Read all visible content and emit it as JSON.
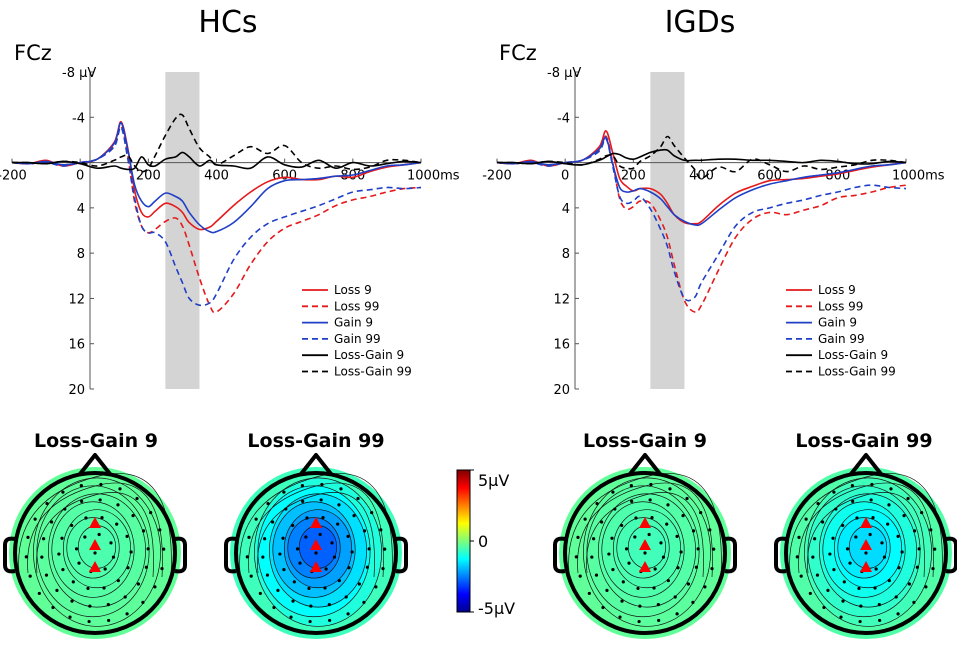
{
  "chart_data": [
    {
      "type": "line",
      "title": "HCs",
      "ylabel": "FCz",
      "y_unit_label": "µV",
      "x_unit_label": "ms",
      "xlim": [
        -200,
        1000
      ],
      "ylim": [
        -8,
        20
      ],
      "y_inverted": true,
      "x_tick_labels": [
        "-200",
        "0",
        "200",
        "400",
        "600",
        "800",
        "1000ms"
      ],
      "y_tick_labels": [
        "-8 µV",
        "-4",
        "0",
        "4",
        "8",
        "12",
        "16",
        "20"
      ],
      "highlight_window": [
        250,
        350
      ],
      "x": [
        -200,
        -150,
        -100,
        -50,
        0,
        50,
        100,
        120,
        140,
        160,
        180,
        200,
        220,
        250,
        280,
        300,
        320,
        350,
        380,
        400,
        450,
        500,
        550,
        600,
        650,
        700,
        750,
        800,
        850,
        900,
        950,
        1000
      ],
      "series": [
        {
          "name": "Loss 9",
          "color": "#e41a1c",
          "dash": false,
          "values": [
            0,
            0.1,
            -0.2,
            0.3,
            0,
            -0.3,
            -1.8,
            -3.6,
            -1.2,
            2.5,
            4.4,
            4.8,
            4.3,
            3.6,
            3.9,
            4.4,
            5.3,
            5.9,
            5.7,
            5.2,
            3.8,
            2.6,
            1.7,
            1.3,
            1.5,
            1.5,
            1.2,
            1.3,
            0.8,
            0.4,
            0.2,
            0
          ]
        },
        {
          "name": "Loss 99",
          "color": "#e41a1c",
          "dash": true,
          "values": [
            0,
            0.1,
            0,
            0.2,
            0,
            -0.3,
            -1.5,
            -3.2,
            -0.5,
            3.5,
            5.6,
            6.2,
            5.9,
            5.2,
            4.9,
            5.6,
            7.3,
            10.2,
            12.6,
            13.2,
            11.6,
            9.0,
            7.0,
            5.8,
            5.2,
            4.6,
            3.8,
            3.3,
            3.0,
            2.6,
            2.3,
            2.2
          ]
        },
        {
          "name": "Gain 9",
          "color": "#1f3fc6",
          "dash": false,
          "values": [
            0,
            0.1,
            -0.1,
            0.2,
            0,
            -0.3,
            -1.7,
            -3.5,
            -1.1,
            2.0,
            3.4,
            3.9,
            3.4,
            2.7,
            3.0,
            3.4,
            4.4,
            5.5,
            6.1,
            6.1,
            5.3,
            3.9,
            2.3,
            1.6,
            1.5,
            1.4,
            1.2,
            1.1,
            0.7,
            0.3,
            0.2,
            0
          ]
        },
        {
          "name": "Gain 99",
          "color": "#1f3fc6",
          "dash": true,
          "values": [
            0,
            0.1,
            0,
            0.3,
            0,
            -0.3,
            -1.4,
            -3.1,
            -0.3,
            3.2,
            5.6,
            6.2,
            6.2,
            7.0,
            9.2,
            10.6,
            12.0,
            12.6,
            12.4,
            11.6,
            8.6,
            6.6,
            5.4,
            4.8,
            4.3,
            3.8,
            3.2,
            2.6,
            2.4,
            2.2,
            2.3,
            2.2
          ]
        },
        {
          "name": "Loss-Gain 9",
          "color": "#000000",
          "dash": false,
          "values": [
            0,
            0,
            0.1,
            -0.1,
            0.1,
            0.5,
            0.3,
            0.5,
            0.6,
            0.5,
            -0.5,
            0.2,
            0.3,
            -0.3,
            -0.5,
            -0.9,
            -0.5,
            0.3,
            -0.2,
            0.2,
            0.3,
            0.5,
            -0.5,
            0.2,
            0.4,
            -0.2,
            0.5,
            0,
            0.3,
            0.1,
            -0.1,
            0
          ]
        },
        {
          "name": "Loss-Gain 99",
          "color": "#000000",
          "dash": true,
          "values": [
            0,
            0,
            0.1,
            -0.1,
            0,
            0.3,
            -0.2,
            -0.5,
            -0.6,
            0.3,
            0.8,
            0.5,
            -0.6,
            -2.4,
            -3.9,
            -4.2,
            -3.0,
            -1.3,
            -0.5,
            0.2,
            -0.6,
            -1.4,
            -0.8,
            -1.5,
            0,
            0.5,
            0.3,
            0.6,
            0.4,
            -0.2,
            -0.2,
            0
          ]
        }
      ]
    },
    {
      "type": "line",
      "title": "IGDs",
      "ylabel": "FCz",
      "y_unit_label": "µV",
      "x_unit_label": "ms",
      "xlim": [
        -200,
        1000
      ],
      "ylim": [
        -8,
        20
      ],
      "y_inverted": true,
      "x_tick_labels": [
        "-200",
        "0",
        "200",
        "400",
        "600",
        "800",
        "1000ms"
      ],
      "y_tick_labels": [
        "-8 µV",
        "-4",
        "0",
        "4",
        "8",
        "12",
        "16",
        "20"
      ],
      "highlight_window": [
        250,
        350
      ],
      "x": [
        -200,
        -150,
        -100,
        -50,
        0,
        50,
        100,
        120,
        140,
        160,
        180,
        200,
        220,
        250,
        280,
        300,
        320,
        350,
        380,
        400,
        450,
        500,
        550,
        600,
        650,
        700,
        750,
        800,
        850,
        900,
        950,
        1000
      ],
      "series": [
        {
          "name": "Loss 9",
          "color": "#e41a1c",
          "dash": false,
          "values": [
            0,
            0.1,
            -0.2,
            0.3,
            0,
            -0.2,
            -1.4,
            -2.8,
            -0.8,
            1.4,
            2.1,
            2.5,
            2.3,
            2.3,
            2.8,
            3.6,
            4.6,
            5.3,
            5.4,
            5.2,
            3.8,
            2.7,
            2.1,
            1.6,
            1.5,
            1.4,
            1.2,
            1.0,
            0.7,
            0.4,
            0.2,
            0
          ]
        },
        {
          "name": "Loss 99",
          "color": "#e41a1c",
          "dash": true,
          "values": [
            0,
            0.1,
            0,
            0.2,
            0,
            -0.2,
            -1.1,
            -2.3,
            0.1,
            3.2,
            4.1,
            3.9,
            3.4,
            3.6,
            5.1,
            6.6,
            9.0,
            12.2,
            13.2,
            12.6,
            9.5,
            6.6,
            5.0,
            4.4,
            4.6,
            4.2,
            3.8,
            3.1,
            2.9,
            2.6,
            2.2,
            2.0
          ]
        },
        {
          "name": "Gain 9",
          "color": "#1f3fc6",
          "dash": false,
          "values": [
            0,
            0.1,
            -0.1,
            0.2,
            0,
            -0.2,
            -1.2,
            -2.2,
            0.2,
            2.2,
            2.6,
            2.5,
            2.3,
            2.6,
            3.2,
            3.9,
            4.6,
            5.2,
            5.5,
            5.4,
            4.2,
            3.1,
            2.4,
            1.9,
            1.6,
            1.3,
            1.1,
            0.9,
            0.6,
            0.3,
            0.2,
            0
          ]
        },
        {
          "name": "Gain 99",
          "color": "#1f3fc6",
          "dash": true,
          "values": [
            0,
            0.1,
            0,
            0.3,
            0,
            -0.2,
            -1.0,
            -2.1,
            0.4,
            3.0,
            3.6,
            3.4,
            3.0,
            4.1,
            5.9,
            7.4,
            9.6,
            12.0,
            11.9,
            10.6,
            8.1,
            5.6,
            4.4,
            4.0,
            3.6,
            3.3,
            2.9,
            2.6,
            2.2,
            2.0,
            2.2,
            2.3
          ]
        },
        {
          "name": "Loss-Gain 9",
          "color": "#000000",
          "dash": false,
          "values": [
            0,
            0,
            0.1,
            -0.1,
            0.1,
            0.2,
            -0.2,
            -0.5,
            -0.8,
            -0.7,
            -0.4,
            -0.3,
            -0.5,
            -0.9,
            -1.1,
            -1.1,
            -0.6,
            -0.2,
            -0.2,
            -0.2,
            -0.3,
            -0.3,
            -0.2,
            -0.2,
            -0.1,
            0,
            -0.2,
            -0.1,
            0.1,
            0.1,
            -0.1,
            0
          ]
        },
        {
          "name": "Loss-Gain 99",
          "color": "#000000",
          "dash": true,
          "values": [
            0,
            0,
            0.1,
            -0.1,
            0,
            0.2,
            -0.3,
            -0.6,
            -0.6,
            0.3,
            0.5,
            0.5,
            -0.1,
            -0.6,
            -1.4,
            -2.3,
            -1.5,
            -0.4,
            0.6,
            1.4,
            0.4,
            0.8,
            -0.3,
            0.2,
            0.8,
            0.3,
            0.6,
            0.4,
            0.2,
            -0.2,
            -0.2,
            0
          ]
        }
      ]
    },
    {
      "type": "heatmap",
      "subtype": "scalp_topography",
      "group": "HCs",
      "title": "Loss-Gain 9",
      "center_value_uV": -0.5,
      "marked_electrodes": 3
    },
    {
      "type": "heatmap",
      "subtype": "scalp_topography",
      "group": "HCs",
      "title": "Loss-Gain 99",
      "center_value_uV": -2.8,
      "marked_electrodes": 3
    },
    {
      "type": "heatmap",
      "subtype": "scalp_topography",
      "group": "IGDs",
      "title": "Loss-Gain 9",
      "center_value_uV": -0.6,
      "marked_electrodes": 3
    },
    {
      "type": "heatmap",
      "subtype": "scalp_topography",
      "group": "IGDs",
      "title": "Loss-Gain 99",
      "center_value_uV": -1.6,
      "marked_electrodes": 3
    }
  ],
  "colorbar": {
    "range": [
      -5,
      5
    ],
    "ticks": [
      "5µV",
      "0",
      "-5µV"
    ]
  }
}
